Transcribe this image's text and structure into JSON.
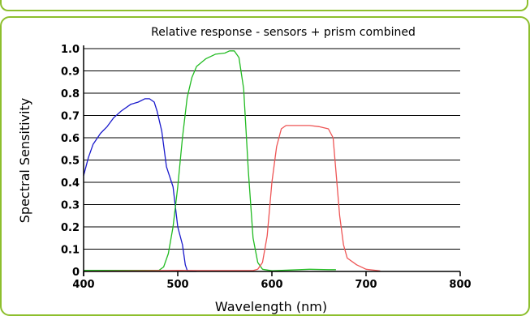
{
  "chart_data": {
    "type": "line",
    "title": "Relative response - sensors + prism combined",
    "xlabel": "Wavelength (nm)",
    "ylabel": "Spectral Sensitivity",
    "xlim": [
      400,
      800
    ],
    "ylim": [
      0,
      1.0
    ],
    "x_ticks": [
      "400",
      "500",
      "600",
      "700",
      "800"
    ],
    "y_ticks": [
      "0",
      "0.1",
      "0.2",
      "0.3",
      "0.4",
      "0.5",
      "0.6",
      "0.7",
      "0.8",
      "0.9",
      "1.0"
    ],
    "grid": "horizontal",
    "series": [
      {
        "color": "#1a1acc",
        "x": [
          400,
          405,
          410,
          418,
          425,
          432,
          440,
          450,
          458,
          465,
          470,
          475,
          478,
          483,
          488,
          495,
          500,
          505,
          508,
          510,
          513,
          520
        ],
        "y": [
          0.43,
          0.51,
          0.57,
          0.62,
          0.65,
          0.69,
          0.72,
          0.75,
          0.76,
          0.775,
          0.775,
          0.76,
          0.72,
          0.63,
          0.47,
          0.38,
          0.2,
          0.12,
          0.03,
          0.005,
          0,
          0
        ]
      },
      {
        "color": "#22bb22",
        "x": [
          400,
          440,
          480,
          485,
          490,
          495,
          500,
          505,
          510,
          515,
          520,
          530,
          540,
          550,
          555,
          560,
          565,
          570,
          575,
          580,
          585,
          590,
          600,
          640,
          660,
          668
        ],
        "y": [
          0.005,
          0.005,
          0.005,
          0.02,
          0.08,
          0.2,
          0.38,
          0.6,
          0.78,
          0.87,
          0.92,
          0.955,
          0.975,
          0.98,
          0.99,
          0.99,
          0.96,
          0.82,
          0.45,
          0.15,
          0.04,
          0.01,
          0.003,
          0.01,
          0.008,
          0.008
        ]
      },
      {
        "color": "#ee5555",
        "x": [
          400,
          500,
          520,
          560,
          580,
          585,
          590,
          595,
          600,
          605,
          610,
          615,
          620,
          640,
          650,
          660,
          665,
          668,
          672,
          676,
          680,
          690,
          700,
          710,
          715
        ],
        "y": [
          0,
          0.005,
          0.004,
          0.004,
          0.004,
          0.01,
          0.04,
          0.16,
          0.4,
          0.56,
          0.64,
          0.655,
          0.655,
          0.655,
          0.65,
          0.64,
          0.6,
          0.45,
          0.25,
          0.12,
          0.06,
          0.03,
          0.01,
          0.005,
          0.002
        ]
      }
    ]
  }
}
